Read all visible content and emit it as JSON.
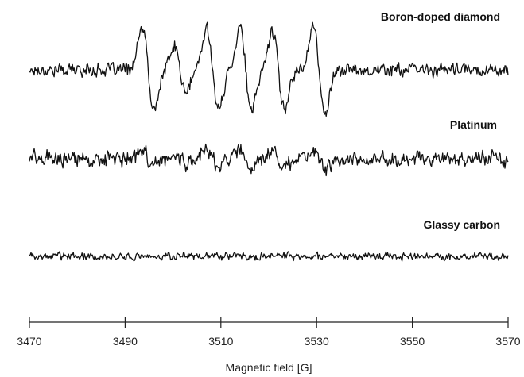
{
  "chart_data": {
    "type": "line",
    "title": "",
    "xlabel": "Magnetic field [G]",
    "ylabel": "",
    "xlim": [
      3470,
      3570
    ],
    "x_ticks": [
      3470,
      3490,
      3510,
      3530,
      3550,
      3570
    ],
    "x_tick_labels": [
      "3470",
      "3490",
      "3510",
      "3530",
      "3550",
      "3570"
    ],
    "grid": false,
    "line_color": "#111111",
    "series": [
      {
        "name": "Boron-doped diamond",
        "x_range": [
          3470,
          3570
        ],
        "peaks": [
          {
            "center": 3494.8,
            "amplitude": 1.0
          },
          {
            "center": 3501.5,
            "amplitude": 0.55
          },
          {
            "center": 3508.3,
            "amplitude": 1.0
          },
          {
            "center": 3515.2,
            "amplitude": 1.05
          },
          {
            "center": 3522.0,
            "amplitude": 0.95
          },
          {
            "center": 3530.5,
            "amplitude": 1.05
          }
        ],
        "noise_level": 0.12
      },
      {
        "name": "Platinum",
        "x_range": [
          3470,
          3570
        ],
        "peaks": [
          {
            "center": 3494.8,
            "amplitude": 0.28
          },
          {
            "center": 3501.5,
            "amplitude": 0.15
          },
          {
            "center": 3508.3,
            "amplitude": 0.32
          },
          {
            "center": 3515.2,
            "amplitude": 0.3
          },
          {
            "center": 3522.0,
            "amplitude": 0.28
          },
          {
            "center": 3530.5,
            "amplitude": 0.3
          }
        ],
        "noise_level": 0.18
      },
      {
        "name": "Glassy carbon",
        "x_range": [
          3470,
          3570
        ],
        "peaks": [],
        "noise_level": 0.12
      }
    ]
  }
}
